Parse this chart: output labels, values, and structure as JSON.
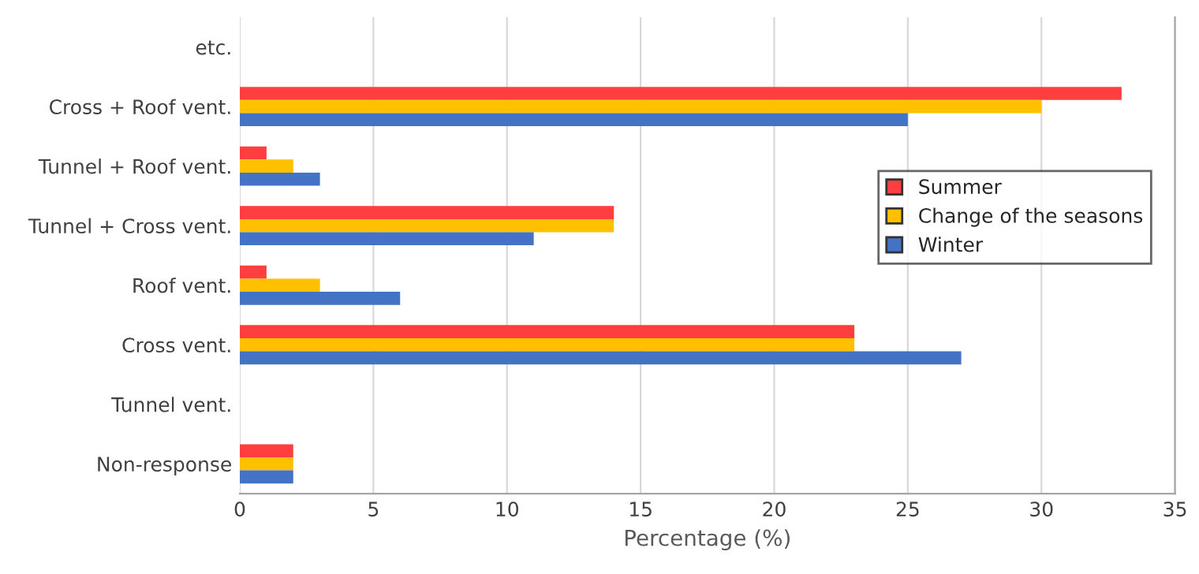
{
  "chart_data": {
    "type": "bar",
    "orientation": "horizontal",
    "xlabel": "Percentage (%)",
    "categories": [
      "etc.",
      "Cross + Roof vent.",
      "Tunnel + Roof vent.",
      "Tunnel + Cross vent.",
      "Roof vent.",
      "Cross vent.",
      "Tunnel vent.",
      "Non-response"
    ],
    "series": [
      {
        "name": "Summer",
        "color": "#ff3f3f",
        "values": [
          0,
          33,
          1,
          14,
          1,
          23,
          0,
          2
        ]
      },
      {
        "name": "Change of the seasons",
        "color": "#ffc000",
        "values": [
          0,
          30,
          2,
          14,
          3,
          23,
          0,
          2
        ]
      },
      {
        "name": "Winter",
        "color": "#4472c4",
        "values": [
          0,
          25,
          3,
          11,
          6,
          27,
          0,
          2
        ]
      }
    ],
    "xlim": [
      0,
      35
    ],
    "xticks": [
      0,
      5,
      10,
      15,
      20,
      25,
      30,
      35
    ],
    "grid": "x",
    "legend": "right"
  }
}
